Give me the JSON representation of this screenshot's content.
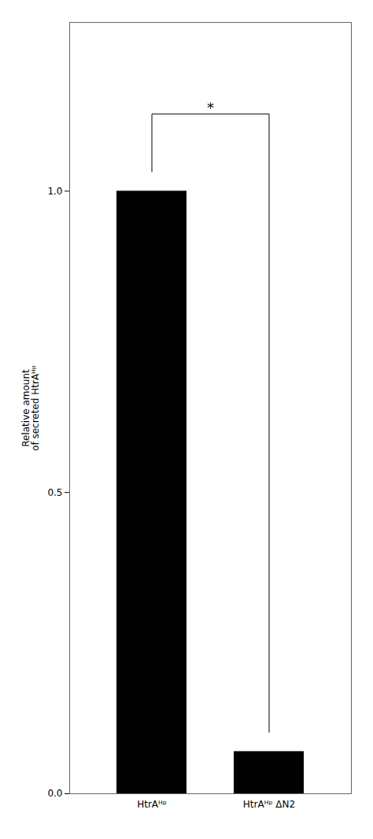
{
  "chart_data": {
    "type": "bar",
    "categories": [
      "HtrAᴴᵖ",
      "HtrAᴴᵖ ΔN2"
    ],
    "values": [
      1.0,
      0.07
    ],
    "color": "#000000",
    "ylabel": "Relative amount\nof secreted HtrAᴴᵖ",
    "ylim": [
      0,
      1.28
    ],
    "yticks": [
      {
        "value": 0,
        "label": "0.0"
      },
      {
        "value": 0.5,
        "label": "0.5"
      },
      {
        "value": 1,
        "label": "1.0"
      }
    ],
    "annotations": [
      "*"
    ],
    "grid": false
  }
}
